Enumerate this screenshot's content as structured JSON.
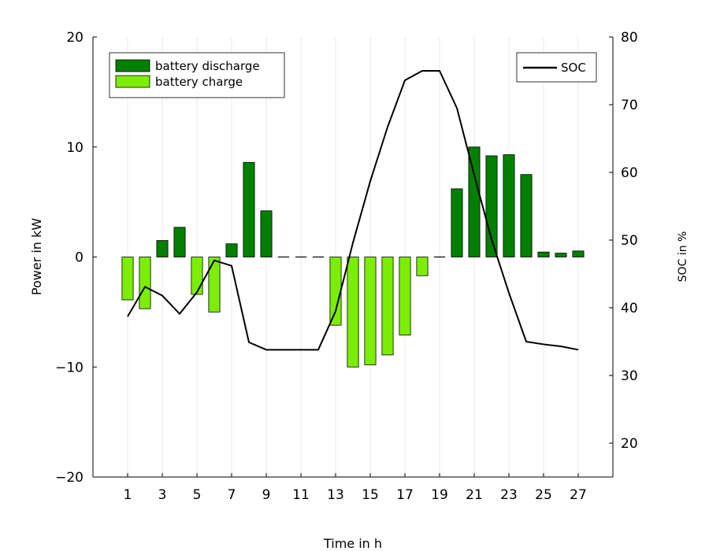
{
  "chart_data": {
    "type": "bar",
    "title": "",
    "xlabel": "Time in h",
    "ylabel": "Power in kW",
    "y2label": "SOC in %",
    "x": [
      1,
      2,
      3,
      4,
      5,
      6,
      7,
      8,
      9,
      10,
      11,
      12,
      13,
      14,
      15,
      16,
      17,
      18,
      19,
      20,
      21,
      22,
      23,
      24,
      25,
      26,
      27
    ],
    "xticks": [
      "1",
      "3",
      "5",
      "7",
      "9",
      "11",
      "13",
      "15",
      "17",
      "19",
      "21",
      "23",
      "25",
      "27"
    ],
    "xlim": [
      -1,
      29
    ],
    "ylim": [
      -20,
      20
    ],
    "yticks": [
      "−20",
      "−10",
      "0",
      "10",
      "20"
    ],
    "y2lim": [
      15,
      80
    ],
    "y2ticks": [
      "20",
      "30",
      "40",
      "50",
      "60",
      "70",
      "80"
    ],
    "grid": "vertical",
    "series": [
      {
        "name": "battery discharge",
        "color": "#008000",
        "axis": "left",
        "values": [
          0,
          0,
          1.5,
          2.7,
          0,
          0,
          1.2,
          8.6,
          4.2,
          0,
          0,
          0,
          0,
          0,
          0,
          0,
          0,
          0,
          0,
          6.2,
          10.0,
          9.2,
          9.3,
          7.5,
          0.45,
          0.35,
          0.55
        ]
      },
      {
        "name": "battery charge",
        "color": "#7cee04",
        "axis": "left",
        "values": [
          -3.9,
          -4.7,
          0,
          0,
          -3.4,
          -5.0,
          0,
          0,
          0,
          0,
          0,
          0,
          -6.2,
          -10.0,
          -9.8,
          -8.9,
          -7.1,
          -1.7,
          0,
          0,
          0,
          0,
          0,
          0,
          0,
          0,
          0
        ]
      },
      {
        "name": "SOC",
        "type": "line",
        "color": "#000000",
        "axis": "right",
        "values": [
          38.7,
          43.1,
          41.8,
          39.1,
          42.3,
          47.0,
          46.2,
          34.9,
          33.8,
          33.8,
          33.8,
          33.8,
          39.5,
          49.6,
          58.7,
          66.7,
          73.6,
          75.0,
          75.0,
          69.5,
          59.6,
          50.1,
          42.2,
          35.0,
          34.6,
          34.3,
          33.8
        ]
      }
    ],
    "legend": {
      "left": "top-left",
      "right": "top-right"
    }
  }
}
